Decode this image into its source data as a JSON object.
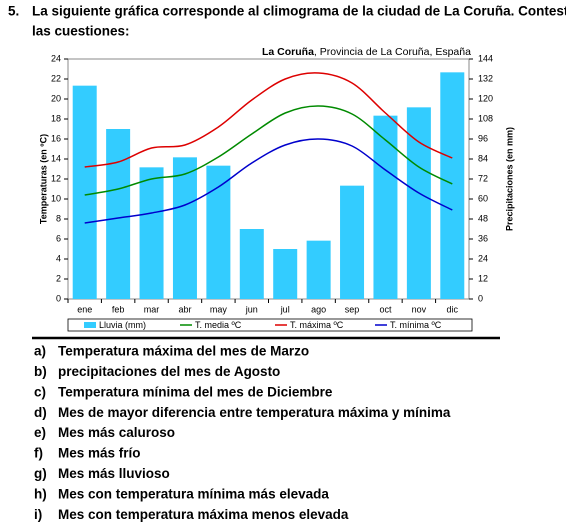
{
  "question": {
    "number": "5.",
    "text_line1": "La siguiente gráfica corresponde al climograma de la ciudad de La Coruña. Contesta a",
    "text_line2": "las cuestiones:"
  },
  "chart_data": {
    "type": "combo",
    "title": "La Coruña",
    "subtitle": ", Provincia de La Coruña, España",
    "y_label": "Temperaturas (en ºC)",
    "y2_label": "Precipitaciones (en mm)",
    "categories": [
      "ene",
      "feb",
      "mar",
      "abr",
      "may",
      "jun",
      "jul",
      "ago",
      "sep",
      "oct",
      "nov",
      "dic"
    ],
    "series": [
      {
        "name": "Lluvia (mm)",
        "type": "bar",
        "axis": "y2",
        "color": "#33ccff",
        "values": [
          128,
          102,
          79,
          85,
          80,
          42,
          30,
          35,
          68,
          110,
          115,
          136
        ]
      },
      {
        "name": "T. media ºC",
        "type": "line",
        "color": "#008a00",
        "values": [
          10.4,
          11.0,
          12.0,
          12.5,
          14.2,
          16.5,
          18.6,
          19.3,
          18.5,
          15.9,
          13.2,
          11.5
        ]
      },
      {
        "name": "T. máxima ºC",
        "type": "line",
        "color": "#dd0000",
        "values": [
          13.2,
          13.7,
          15.1,
          15.4,
          17.2,
          19.9,
          22.0,
          22.6,
          21.6,
          18.6,
          15.7,
          14.1
        ]
      },
      {
        "name": "T. mínima ºC",
        "type": "line",
        "color": "#0000cc",
        "values": [
          7.6,
          8.1,
          8.6,
          9.4,
          11.2,
          13.6,
          15.4,
          16.0,
          15.3,
          12.9,
          10.6,
          8.9
        ]
      }
    ],
    "ylim": [
      0,
      24
    ],
    "yticks": [
      0,
      2,
      4,
      6,
      8,
      10,
      12,
      14,
      16,
      18,
      20,
      22,
      24
    ],
    "y2lim": [
      0,
      144
    ],
    "y2ticks": [
      0,
      12,
      24,
      36,
      48,
      60,
      72,
      84,
      96,
      108,
      120,
      132,
      144
    ],
    "legend": "bottom"
  },
  "questions": [
    {
      "letter": "a)",
      "text": "Temperatura máxima del mes de Marzo"
    },
    {
      "letter": "b)",
      "text": "precipitaciones del mes de Agosto"
    },
    {
      "letter": "c)",
      "text": "Temperatura mínima del mes de Diciembre"
    },
    {
      "letter": "d)",
      "text": "Mes de mayor diferencia entre temperatura máxima y mínima"
    },
    {
      "letter": "e)",
      "text": "Mes más caluroso"
    },
    {
      "letter": "f)",
      "text": "Mes más frío"
    },
    {
      "letter": "g)",
      "text": "Mes más lluvioso"
    },
    {
      "letter": "h)",
      "text": "Mes con temperatura mínima más elevada"
    },
    {
      "letter": "i)",
      "text": "Mes con temperatura máxima menos elevada"
    }
  ]
}
